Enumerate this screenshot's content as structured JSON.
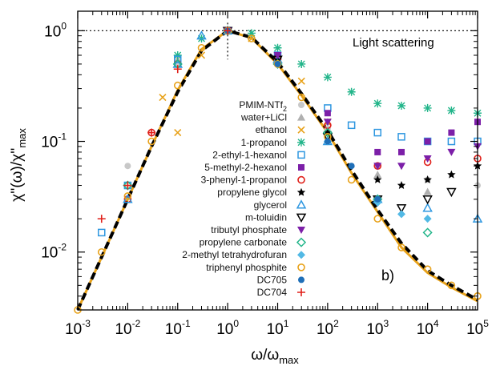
{
  "chart_data": {
    "type": "scatter",
    "x_scale": "log",
    "y_scale": "log",
    "xlim": [
      0.001,
      100000
    ],
    "ylim": [
      0.003,
      1.5
    ],
    "x_ticks": [
      {
        "value": 0.001,
        "base": "10",
        "exp": "-3"
      },
      {
        "value": 0.01,
        "base": "10",
        "exp": "-2"
      },
      {
        "value": 0.1,
        "base": "10",
        "exp": "-1"
      },
      {
        "value": 1,
        "base": "10",
        "exp": "0"
      },
      {
        "value": 10,
        "base": "10",
        "exp": "1"
      },
      {
        "value": 100,
        "base": "10",
        "exp": "2"
      },
      {
        "value": 1000,
        "base": "10",
        "exp": "3"
      },
      {
        "value": 10000,
        "base": "10",
        "exp": "4"
      },
      {
        "value": 100000,
        "base": "10",
        "exp": "5"
      }
    ],
    "y_ticks": [
      {
        "value": 0.01,
        "base": "10",
        "exp": "-2"
      },
      {
        "value": 0.1,
        "base": "10",
        "exp": "-1"
      },
      {
        "value": 1,
        "base": "10",
        "exp": "0"
      }
    ],
    "xlabel": {
      "main": "ω/ω",
      "sub": "max"
    },
    "ylabel": {
      "num": "χ''(ω)/χ''",
      "num_sub": "max"
    },
    "annotation": "Light scattering",
    "panel_label": "b)",
    "reference_line_y": 1,
    "reference_line_x": 1,
    "series": [
      {
        "name_main": "PMIM-NTf",
        "name_sub": "2",
        "marker": "circle-filled",
        "color": "#c8c8c8",
        "x": [
          0.01,
          0.1,
          1,
          10,
          100,
          1000,
          10000,
          100000
        ],
        "y": [
          0.06,
          0.5,
          1,
          0.55,
          0.13,
          0.06,
          0.045,
          0.04
        ]
      },
      {
        "name_main": "water+LiCl",
        "name_sub": "",
        "marker": "triangle-filled",
        "color": "#b0b0b0",
        "x": [
          0.1,
          1,
          10,
          100,
          1000,
          10000
        ],
        "y": [
          0.55,
          1,
          0.6,
          0.15,
          0.05,
          0.035
        ]
      },
      {
        "name_main": "ethanol",
        "name_sub": "",
        "marker": "x",
        "color": "#e8a21a",
        "x": [
          0.05,
          0.1,
          0.3,
          1,
          3,
          10,
          30,
          100
        ],
        "y": [
          0.25,
          0.12,
          0.6,
          1,
          0.85,
          0.6,
          0.35,
          0.15
        ]
      },
      {
        "name_main": "1-propanol",
        "name_sub": "",
        "marker": "asterisk",
        "color": "#22b58a",
        "x": [
          0.1,
          0.3,
          1,
          3,
          10,
          30,
          100,
          300,
          1000,
          3000,
          10000,
          30000,
          100000
        ],
        "y": [
          0.6,
          0.85,
          1,
          0.95,
          0.7,
          0.5,
          0.38,
          0.28,
          0.22,
          0.21,
          0.2,
          0.19,
          0.18
        ]
      },
      {
        "name_main": "2-ethyl-1-hexanol",
        "name_sub": "",
        "marker": "square-open",
        "color": "#2e97e0",
        "x": [
          0.003,
          0.01,
          0.1,
          1,
          10,
          100,
          300,
          1000,
          3000,
          10000,
          30000,
          100000
        ],
        "y": [
          0.015,
          0.04,
          0.55,
          1,
          0.6,
          0.2,
          0.14,
          0.12,
          0.11,
          0.1,
          0.1,
          0.1
        ]
      },
      {
        "name_main": "5-methyl-2-hexanol",
        "name_sub": "",
        "marker": "square-filled",
        "color": "#7c1fa8",
        "x": [
          1,
          10,
          100,
          1000,
          3000,
          10000,
          30000,
          100000
        ],
        "y": [
          1,
          0.6,
          0.18,
          0.08,
          0.08,
          0.1,
          0.12,
          0.15
        ]
      },
      {
        "name_main": "3-phenyl-1-propanol",
        "name_sub": "",
        "marker": "circle-open",
        "color": "#e0201a",
        "x": [
          0.01,
          0.03,
          0.1,
          1,
          10,
          100,
          1000,
          10000,
          100000
        ],
        "y": [
          0.03,
          0.12,
          0.5,
          1,
          0.55,
          0.14,
          0.06,
          0.065,
          0.07
        ]
      },
      {
        "name_main": "propylene glycol",
        "name_sub": "",
        "marker": "star-filled",
        "color": "#000000",
        "x": [
          1,
          10,
          100,
          1000,
          3000,
          10000,
          30000,
          100000
        ],
        "y": [
          1,
          0.55,
          0.12,
          0.045,
          0.04,
          0.045,
          0.05,
          0.06
        ]
      },
      {
        "name_main": "glycerol",
        "name_sub": "",
        "marker": "triangle-open",
        "color": "#2e97e0",
        "x": [
          0.01,
          0.1,
          0.3,
          1,
          10,
          100,
          1000,
          10000,
          100000
        ],
        "y": [
          0.03,
          0.5,
          0.9,
          1,
          0.55,
          0.1,
          0.03,
          0.025,
          0.02
        ]
      },
      {
        "name_main": "m-toluidin",
        "name_sub": "",
        "marker": "triangle-down-open",
        "color": "#000000",
        "x": [
          1,
          10,
          100,
          1000,
          3000,
          10000,
          30000
        ],
        "y": [
          1,
          0.55,
          0.11,
          0.03,
          0.025,
          0.03,
          0.035
        ]
      },
      {
        "name_main": "tributyl phosphate",
        "name_sub": "",
        "marker": "triangle-down-filled",
        "color": "#7c1fa8",
        "x": [
          1,
          10,
          100,
          1000,
          3000,
          10000,
          30000,
          100000
        ],
        "y": [
          1,
          0.6,
          0.15,
          0.06,
          0.06,
          0.07,
          0.08,
          0.09
        ]
      },
      {
        "name_main": "propylene carbonate",
        "name_sub": "",
        "marker": "diamond-open",
        "color": "#22b58a",
        "x": [
          0.01,
          0.1,
          1,
          10,
          100,
          1000,
          10000
        ],
        "y": [
          0.04,
          0.5,
          1,
          0.5,
          0.12,
          0.03,
          0.015
        ]
      },
      {
        "name_main": "2-methyl tetrahydrofuran",
        "name_sub": "",
        "marker": "diamond-filled",
        "color": "#52b9e5",
        "x": [
          1,
          10,
          100,
          1000,
          3000,
          10000
        ],
        "y": [
          1,
          0.5,
          0.1,
          0.028,
          0.022,
          0.02
        ]
      },
      {
        "name_main": "triphenyl phosphite",
        "name_sub": "",
        "marker": "circle-open",
        "color": "#e8a21a",
        "x": [
          0.001,
          0.003,
          0.01,
          0.03,
          0.1,
          0.3,
          1,
          3,
          10,
          30,
          100,
          300,
          1000,
          3000,
          10000,
          30000,
          100000
        ],
        "y": [
          0.003,
          0.01,
          0.032,
          0.1,
          0.32,
          0.7,
          1,
          0.85,
          0.5,
          0.25,
          0.11,
          0.045,
          0.02,
          0.011,
          0.007,
          0.005,
          0.004
        ]
      },
      {
        "name_main": "DC705",
        "name_sub": "",
        "marker": "circle-filled",
        "color": "#1f6fb8",
        "x": [
          1,
          10,
          100,
          300,
          1000
        ],
        "y": [
          1,
          0.5,
          0.1,
          0.06,
          0.03
        ]
      },
      {
        "name_main": "DC704",
        "name_sub": "",
        "marker": "plus",
        "color": "#e0201a",
        "x": [
          0.003,
          0.01,
          0.03,
          0.1,
          1
        ],
        "y": [
          0.02,
          0.04,
          0.12,
          0.45,
          1
        ]
      }
    ],
    "master_curves": [
      {
        "style": "solid",
        "color": "#e8a21a",
        "x": [
          0.001,
          0.003,
          0.01,
          0.03,
          0.1,
          0.3,
          1,
          3,
          10,
          30,
          100,
          300,
          1000,
          3000,
          10000,
          30000,
          100000
        ],
        "y": [
          0.003,
          0.009,
          0.03,
          0.09,
          0.29,
          0.68,
          1,
          0.86,
          0.5,
          0.26,
          0.12,
          0.052,
          0.023,
          0.011,
          0.0065,
          0.0048,
          0.0036
        ]
      },
      {
        "style": "dashed",
        "color": "#000000",
        "x": [
          0.001,
          0.003,
          0.01,
          0.03,
          0.1,
          0.3,
          1,
          3,
          10,
          30,
          100,
          300,
          1000,
          3000,
          10000,
          30000,
          100000
        ],
        "y": [
          0.003,
          0.009,
          0.03,
          0.09,
          0.28,
          0.66,
          1,
          0.87,
          0.52,
          0.27,
          0.125,
          0.055,
          0.024,
          0.012,
          0.0068,
          0.005,
          0.0037
        ]
      }
    ]
  }
}
